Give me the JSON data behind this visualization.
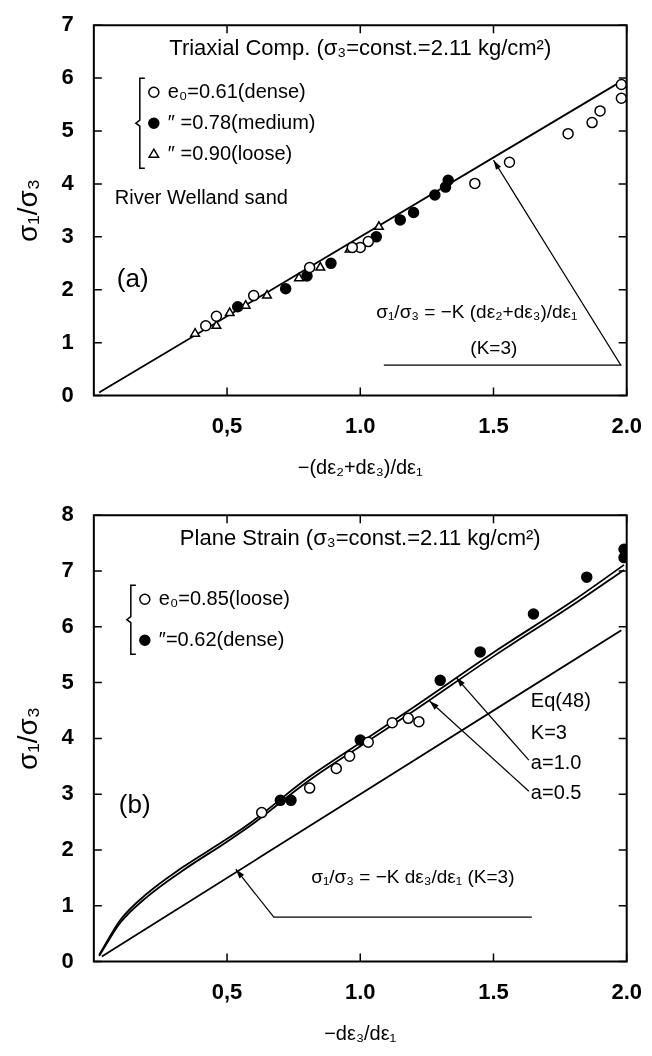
{
  "chart_data": [
    {
      "type": "scatter",
      "title": "Triaxial Comp. (σ₃=const.=2.11 kg/cm²)",
      "xlabel": "−(dε₂+dε₃)/dε₁",
      "ylabel": "σ₁/σ₃",
      "xlim": [
        0,
        2
      ],
      "ylim": [
        0,
        7
      ],
      "xticks": [
        {
          "value": 0.5,
          "label": "0,5"
        },
        {
          "value": 1,
          "label": "1.0"
        },
        {
          "value": 1.5,
          "label": "1.5"
        },
        {
          "value": 2,
          "label": "2.0"
        }
      ],
      "yticks": [
        0,
        1,
        2,
        3,
        4,
        5,
        6,
        7
      ],
      "grid": false,
      "legend": "top left",
      "annotations": [
        "River Welland sand",
        "(a)",
        "σ₁/σ₃ = −K (dε₂+dε₃)/dε₁",
        {
          "text": "(K=3)",
          "x": 1.5,
          "y": 4.45
        }
      ],
      "series": [
        {
          "name": "e₀=0.61(dense)",
          "type": "scatter",
          "marker": "circle",
          "color": "#ffffff",
          "x": [
            1.98,
            1.98,
            1.9,
            1.87,
            1.78,
            1.56,
            1.43,
            1.03,
            1.0,
            0.97,
            0.81,
            0.6,
            0.46,
            0.42
          ],
          "values": [
            5.88,
            5.62,
            5.38,
            5.16,
            4.95,
            4.41,
            4.01,
            2.91,
            2.8,
            2.8,
            2.42,
            1.89,
            1.5,
            1.32
          ]
        },
        {
          "name": "″ =0.78(medium)",
          "type": "scatter",
          "marker": "circle",
          "color": "#000000",
          "x": [
            1.33,
            1.32,
            1.28,
            1.2,
            1.15,
            1.06,
            0.89,
            0.8,
            0.72,
            0.54
          ],
          "values": [
            4.07,
            3.94,
            3.79,
            3.46,
            3.32,
            3.0,
            2.5,
            2.26,
            2.02,
            1.68
          ]
        },
        {
          "name": "″ =0.90(loose)",
          "type": "scatter",
          "marker": "triangle",
          "color": "#ffffff",
          "x": [
            1.07,
            0.96,
            0.85,
            0.77,
            0.65,
            0.57,
            0.51,
            0.46,
            0.38
          ],
          "values": [
            3.19,
            2.76,
            2.42,
            2.22,
            1.89,
            1.7,
            1.56,
            1.32,
            1.17
          ]
        },
        {
          "type": "line",
          "marker": "none",
          "line_style": "solid",
          "color": "#000000",
          "x": [
            0.02,
            1.97
          ],
          "values": [
            0.06,
            5.91
          ]
        }
      ]
    },
    {
      "type": "scatter",
      "title": "Plane Strain (σ₃=const.=2.11 kg/cm²)",
      "xlabel": "−dε₃/dε₁",
      "ylabel": "σ₁/σ₃",
      "xlim": [
        0,
        2
      ],
      "ylim": [
        0,
        8
      ],
      "xticks": [
        {
          "value": 0.5,
          "label": "0,5"
        },
        {
          "value": 1,
          "label": "1.0"
        },
        {
          "value": 1.5,
          "label": "1.5"
        },
        {
          "value": 2,
          "label": "2.0"
        }
      ],
      "yticks": [
        0,
        1,
        2,
        3,
        4,
        5,
        6,
        7,
        8
      ],
      "grid": false,
      "legend": "top left",
      "annotations": [
        "(b)",
        "Eq(48)",
        "K=3",
        {
          "text": "a=1.0",
          "x": 1.36,
          "y": 5.09
        },
        {
          "text": "a=0.5",
          "x": 1.26,
          "y": 4.67
        },
        "σ₁/σ₃ = −K dε₃/dε₁ (K=3)"
      ],
      "series": [
        {
          "name": "e₀=0.85(loose)",
          "type": "scatter",
          "marker": "circle",
          "color": "#ffffff",
          "x": [
            1.22,
            1.18,
            1.12,
            1.03,
            0.96,
            0.91,
            0.81,
            0.63
          ],
          "values": [
            4.3,
            4.36,
            4.28,
            3.93,
            3.68,
            3.46,
            3.11,
            2.67
          ]
        },
        {
          "name": "″=0.62(dense)",
          "type": "scatter",
          "marker": "circle",
          "color": "#000000",
          "x": [
            1.99,
            1.99,
            1.85,
            1.65,
            1.45,
            1.3,
            1.0,
            0.74,
            0.7
          ],
          "values": [
            7.39,
            7.24,
            6.89,
            6.23,
            5.55,
            5.04,
            3.97,
            2.89,
            2.89
          ]
        },
        {
          "type": "line",
          "marker": "none",
          "line_style": "solid",
          "color": "#000000",
          "x": [
            0.02,
            0.1,
            0.2,
            0.33,
            0.5,
            0.6,
            0.8,
            1.0,
            1.2,
            1.5,
            1.8,
            1.99
          ],
          "values": [
            0.12,
            0.75,
            1.22,
            1.68,
            2.2,
            2.53,
            3.28,
            3.92,
            4.56,
            5.54,
            6.47,
            7.11
          ]
        },
        {
          "type": "line",
          "marker": "none",
          "line_style": "solid",
          "color": "#000000",
          "x": [
            0.02,
            0.1,
            0.2,
            0.33,
            0.5,
            0.6,
            0.8,
            1.0,
            1.2,
            1.5,
            1.8,
            1.99
          ],
          "values": [
            0.1,
            0.7,
            1.16,
            1.62,
            2.15,
            2.48,
            3.22,
            3.86,
            4.49,
            5.47,
            6.4,
            7.02
          ]
        },
        {
          "type": "line",
          "marker": "none",
          "line_style": "solid",
          "color": "#000000",
          "x": [
            0.03,
            1.98
          ],
          "values": [
            0.09,
            5.94
          ]
        }
      ]
    }
  ]
}
